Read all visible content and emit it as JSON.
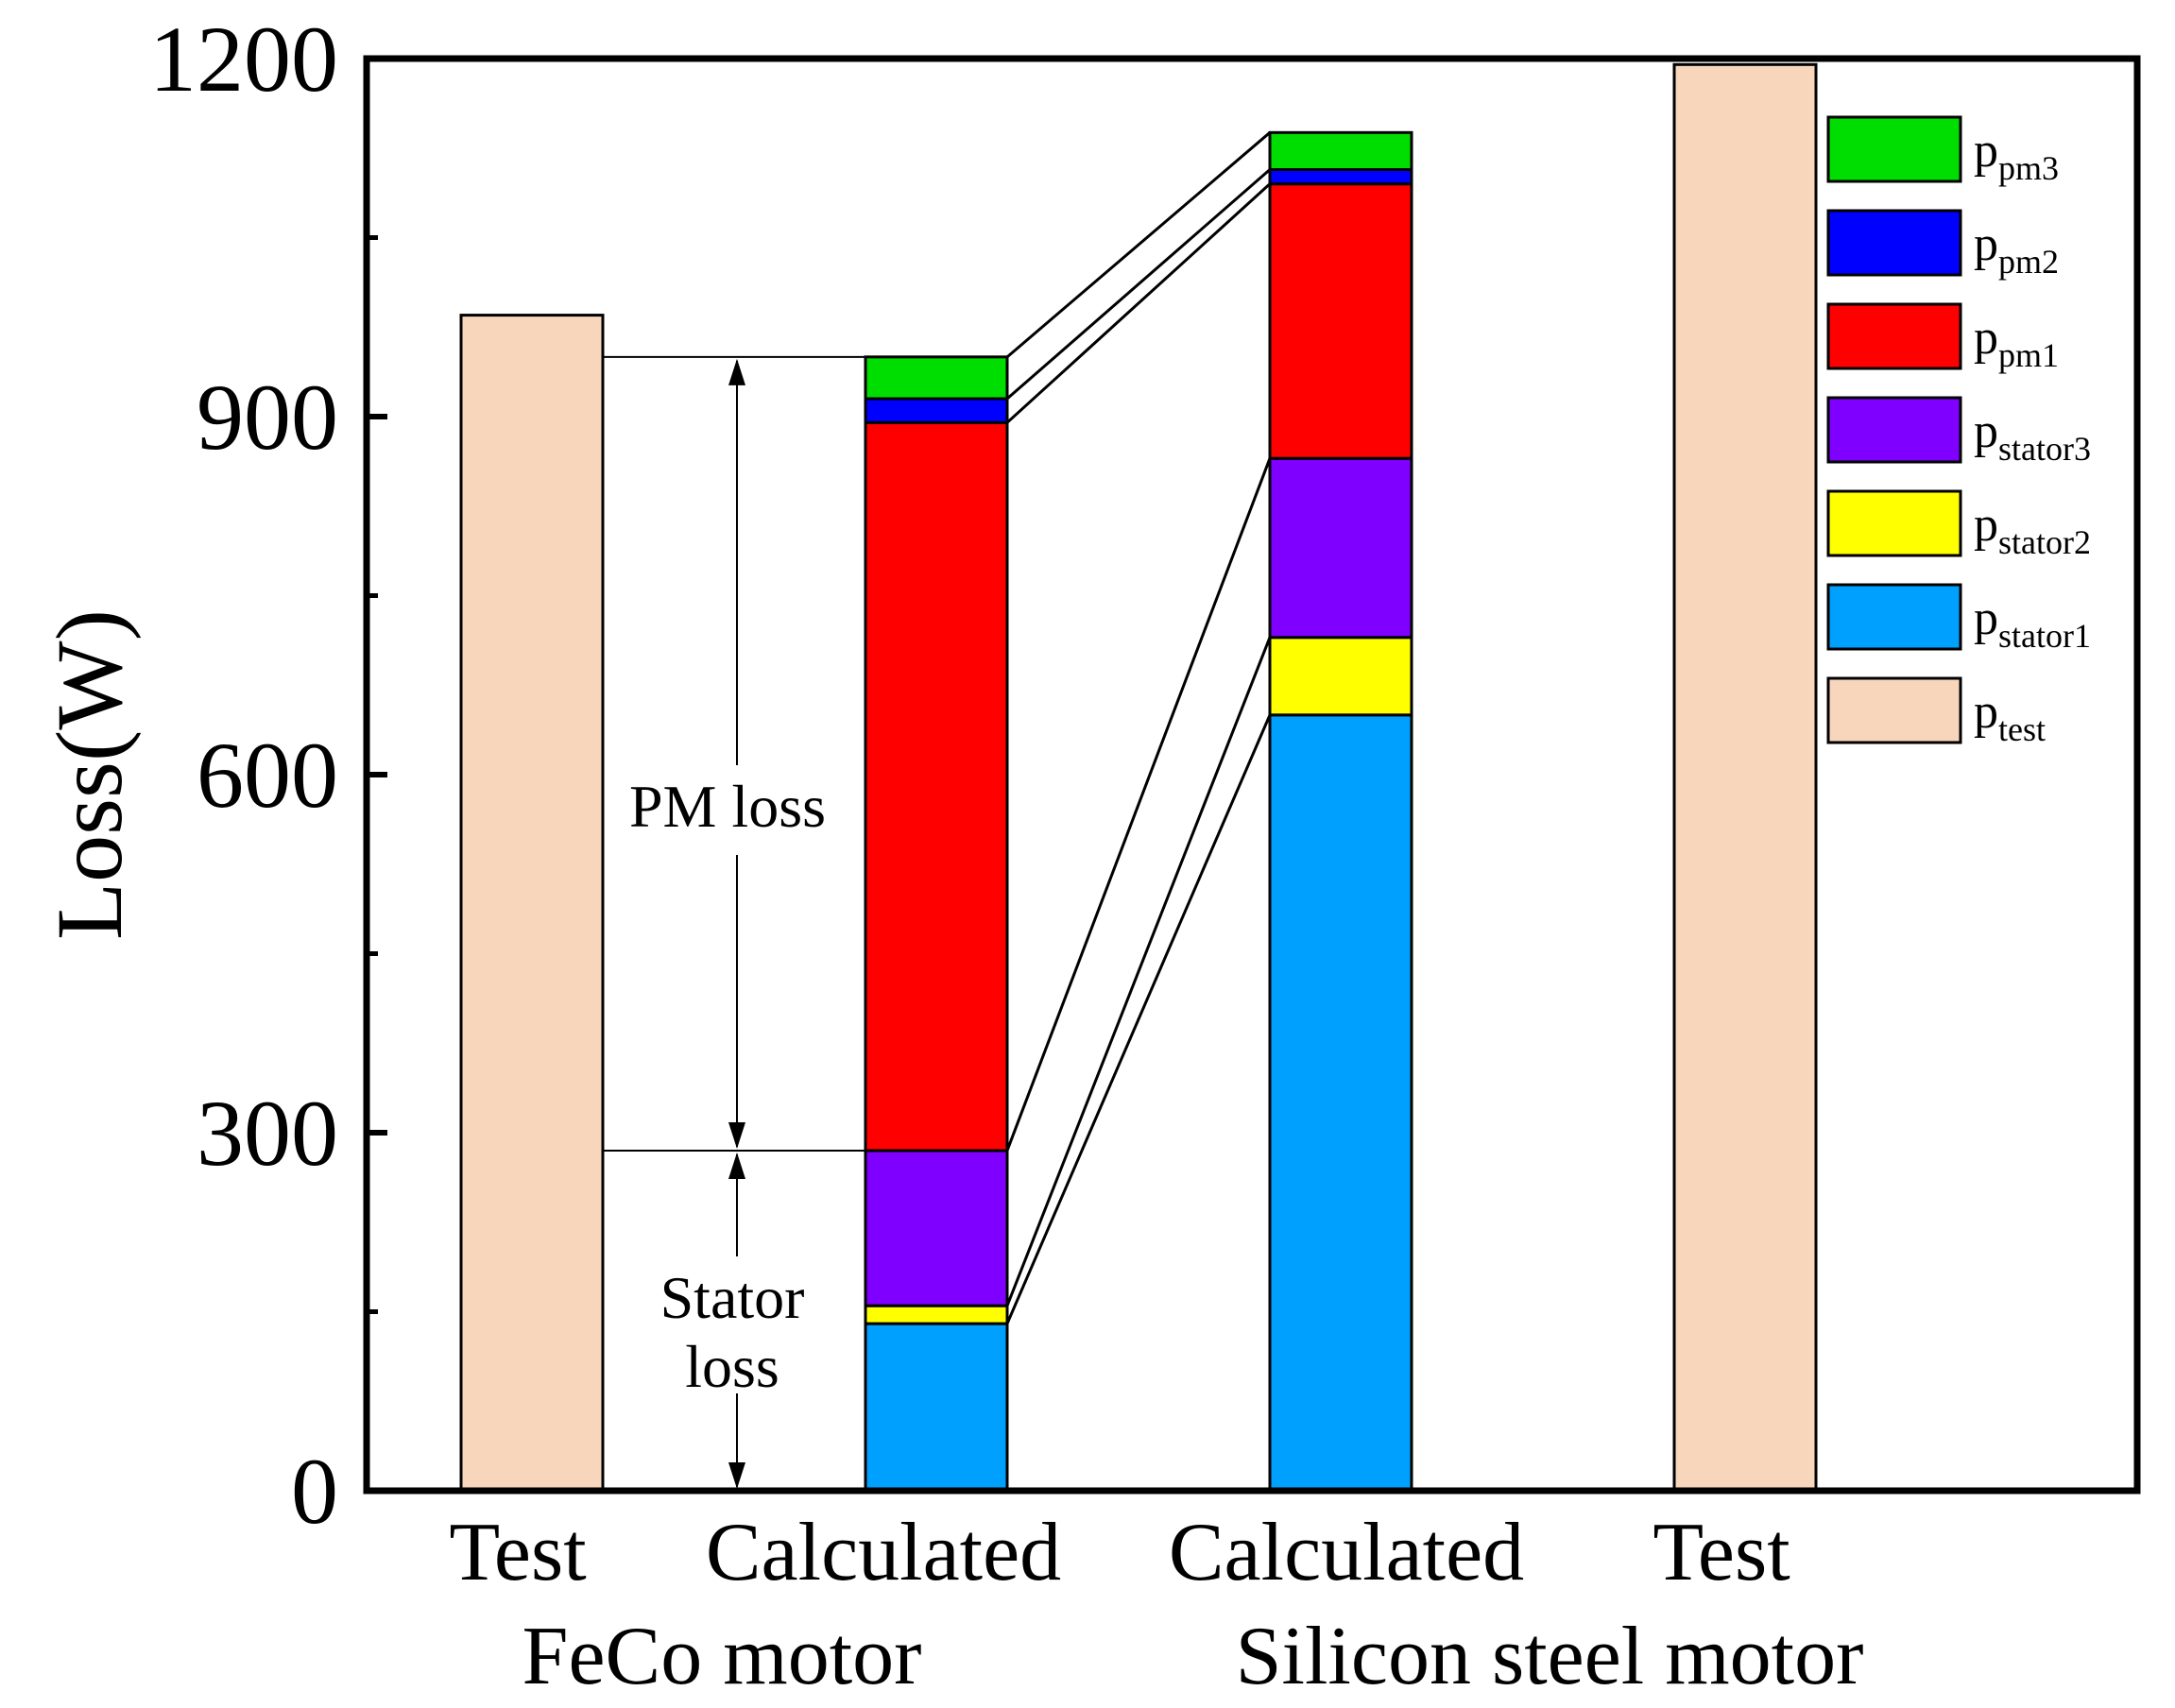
{
  "chart_data": {
    "type": "bar",
    "ylabel": "Loss(W)",
    "ylim": [
      0,
      1200
    ],
    "yticks": [
      "0",
      "300",
      "600",
      "900",
      "1200"
    ],
    "categories": [
      "Test",
      "Calculated",
      "Calculated",
      "Test"
    ],
    "groups": [
      {
        "label": "FeCo motor",
        "categories": [
          0,
          1
        ]
      },
      {
        "label": "Silicon steel motor",
        "categories": [
          2,
          3
        ]
      }
    ],
    "series": [
      {
        "name": "p_stator1",
        "base": "p",
        "sub": "stator1",
        "color": "#00A0FF",
        "values": [
          null,
          140,
          650,
          null
        ]
      },
      {
        "name": "p_stator2",
        "base": "p",
        "sub": "stator2",
        "color": "#FFFF00",
        "values": [
          null,
          15,
          65,
          null
        ]
      },
      {
        "name": "p_stator3",
        "base": "p",
        "sub": "stator3",
        "color": "#8000FF",
        "values": [
          null,
          130,
          150,
          null
        ]
      },
      {
        "name": "p_pm1",
        "base": "p",
        "sub": "pm1",
        "color": "#FF0000",
        "values": [
          null,
          610,
          230,
          null
        ]
      },
      {
        "name": "p_pm2",
        "base": "p",
        "sub": "pm2",
        "color": "#0000FF",
        "values": [
          null,
          20,
          12,
          null
        ]
      },
      {
        "name": "p_pm3",
        "base": "p",
        "sub": "pm3",
        "color": "#00DD00",
        "values": [
          null,
          35,
          31,
          null
        ]
      },
      {
        "name": "p_test",
        "base": "p",
        "sub": "test",
        "color": "#F8D6BC",
        "values": [
          985,
          null,
          null,
          1195
        ]
      }
    ],
    "legend_order": [
      5,
      4,
      3,
      2,
      1,
      0,
      6
    ],
    "legend_position": "top-right",
    "annotations": {
      "pm_loss": "PM loss",
      "stator_loss_line1": "Stator",
      "stator_loss_line2": "loss"
    },
    "grid": false
  }
}
